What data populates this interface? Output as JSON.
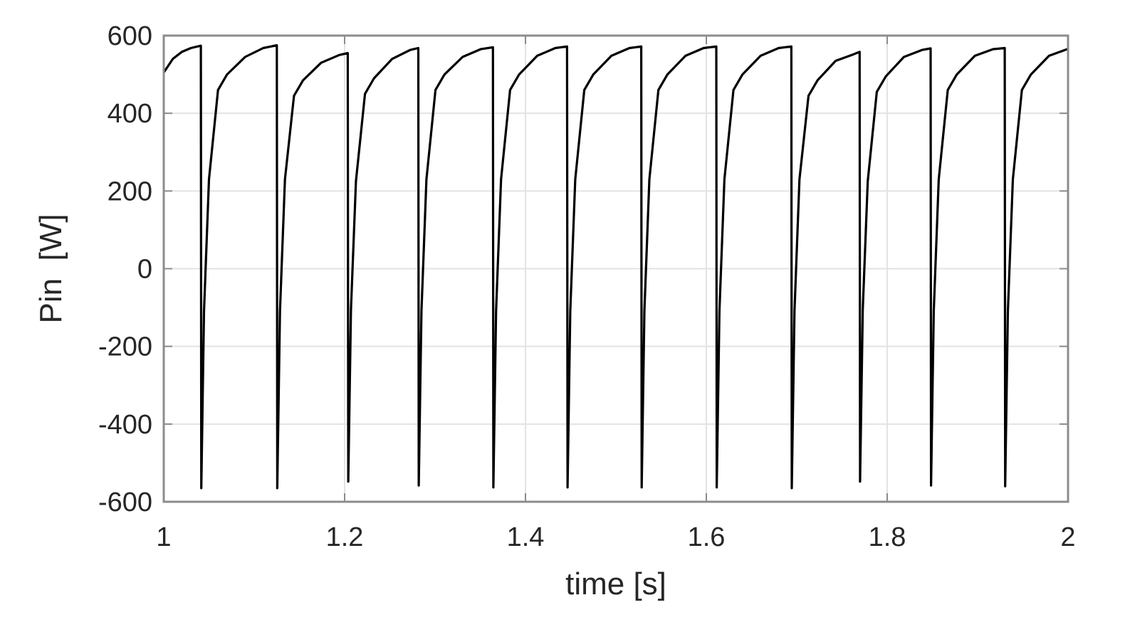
{
  "chart_data": {
    "type": "line",
    "title": "",
    "xlabel": "time [s]",
    "ylabel": "Pin  [W]",
    "xlim": [
      1,
      2
    ],
    "ylim": [
      -600,
      600
    ],
    "x_ticks": [
      1,
      1.2,
      1.4,
      1.6,
      1.8,
      2
    ],
    "x_tick_labels": [
      "1",
      "1.2",
      "1.4",
      "1.6",
      "1.8",
      "2"
    ],
    "y_ticks": [
      600,
      400,
      200,
      0,
      -200,
      -400,
      -600
    ],
    "y_tick_labels": [
      "600",
      "400",
      "200",
      "0",
      "-200",
      "-400",
      "-600"
    ],
    "grid": true,
    "series": [
      {
        "color": "#000000",
        "x": [
          1.0,
          1.01,
          1.02,
          1.03,
          1.041,
          1.0415,
          1.0445,
          1.05,
          1.06,
          1.07,
          1.09,
          1.11,
          1.125,
          1.1255,
          1.1285,
          1.134,
          1.144,
          1.154,
          1.174,
          1.194,
          1.2035,
          1.204,
          1.207,
          1.2125,
          1.2225,
          1.2325,
          1.2525,
          1.2725,
          1.2815,
          1.282,
          1.285,
          1.2905,
          1.3005,
          1.3105,
          1.3305,
          1.3505,
          1.364,
          1.3645,
          1.3675,
          1.373,
          1.383,
          1.393,
          1.413,
          1.433,
          1.446,
          1.4465,
          1.4495,
          1.455,
          1.465,
          1.475,
          1.495,
          1.515,
          1.528,
          1.5285,
          1.5315,
          1.537,
          1.547,
          1.557,
          1.577,
          1.597,
          1.611,
          1.6115,
          1.6145,
          1.62,
          1.63,
          1.64,
          1.66,
          1.68,
          1.694,
          1.6945,
          1.6975,
          1.703,
          1.713,
          1.723,
          1.743,
          1.763,
          1.7695,
          1.77,
          1.773,
          1.7785,
          1.7885,
          1.7985,
          1.8185,
          1.8385,
          1.848,
          1.8485,
          1.8515,
          1.857,
          1.867,
          1.877,
          1.897,
          1.917,
          1.93,
          1.9305,
          1.9335,
          1.939,
          1.949,
          1.959,
          1.979,
          1.999,
          2.0
        ],
        "y": [
          505,
          540,
          558,
          568,
          574,
          -565,
          -110,
          230,
          460,
          500,
          545,
          568,
          575,
          -565,
          -110,
          230,
          445,
          485,
          530,
          550,
          555,
          -548,
          -105,
          225,
          450,
          490,
          540,
          563,
          568,
          -558,
          -110,
          230,
          460,
          500,
          545,
          565,
          570,
          -563,
          -110,
          230,
          460,
          500,
          548,
          568,
          572,
          -563,
          -110,
          230,
          460,
          500,
          548,
          568,
          572,
          -563,
          -110,
          230,
          460,
          500,
          548,
          568,
          572,
          -563,
          -110,
          230,
          460,
          500,
          548,
          568,
          572,
          -565,
          -110,
          230,
          445,
          485,
          535,
          552,
          558,
          -548,
          -105,
          225,
          455,
          495,
          545,
          563,
          567,
          -558,
          -110,
          230,
          460,
          500,
          548,
          565,
          568,
          -560,
          -110,
          230,
          460,
          500,
          548,
          565,
          566
        ]
      }
    ]
  }
}
